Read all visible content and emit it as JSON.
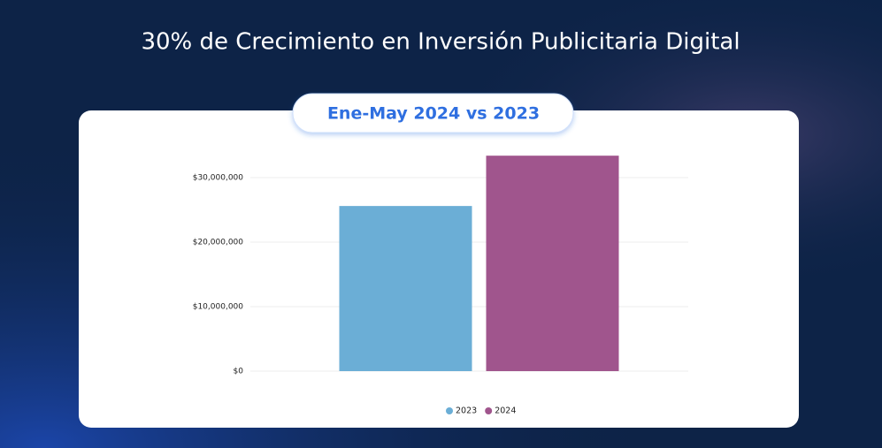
{
  "chart_data": {
    "type": "bar",
    "title": "30% de Crecimiento en Inversión Publicitaria Digital",
    "subtitle": "Ene-May 2024 vs 2023",
    "categories": [
      null
    ],
    "series": [
      {
        "name": "2023",
        "color": "#6baed6",
        "values": [
          25600000
        ]
      },
      {
        "name": "2024",
        "color": "#a0558d",
        "values": [
          33400000
        ]
      }
    ],
    "ylim": [
      0,
      35000000
    ],
    "yticks": [
      {
        "value": 0,
        "label": "$0"
      },
      {
        "value": 10000000,
        "label": "$10,000,000"
      },
      {
        "value": 20000000,
        "label": "$20,000,000"
      },
      {
        "value": 30000000,
        "label": "$30,000,000"
      }
    ],
    "grid": true
  }
}
